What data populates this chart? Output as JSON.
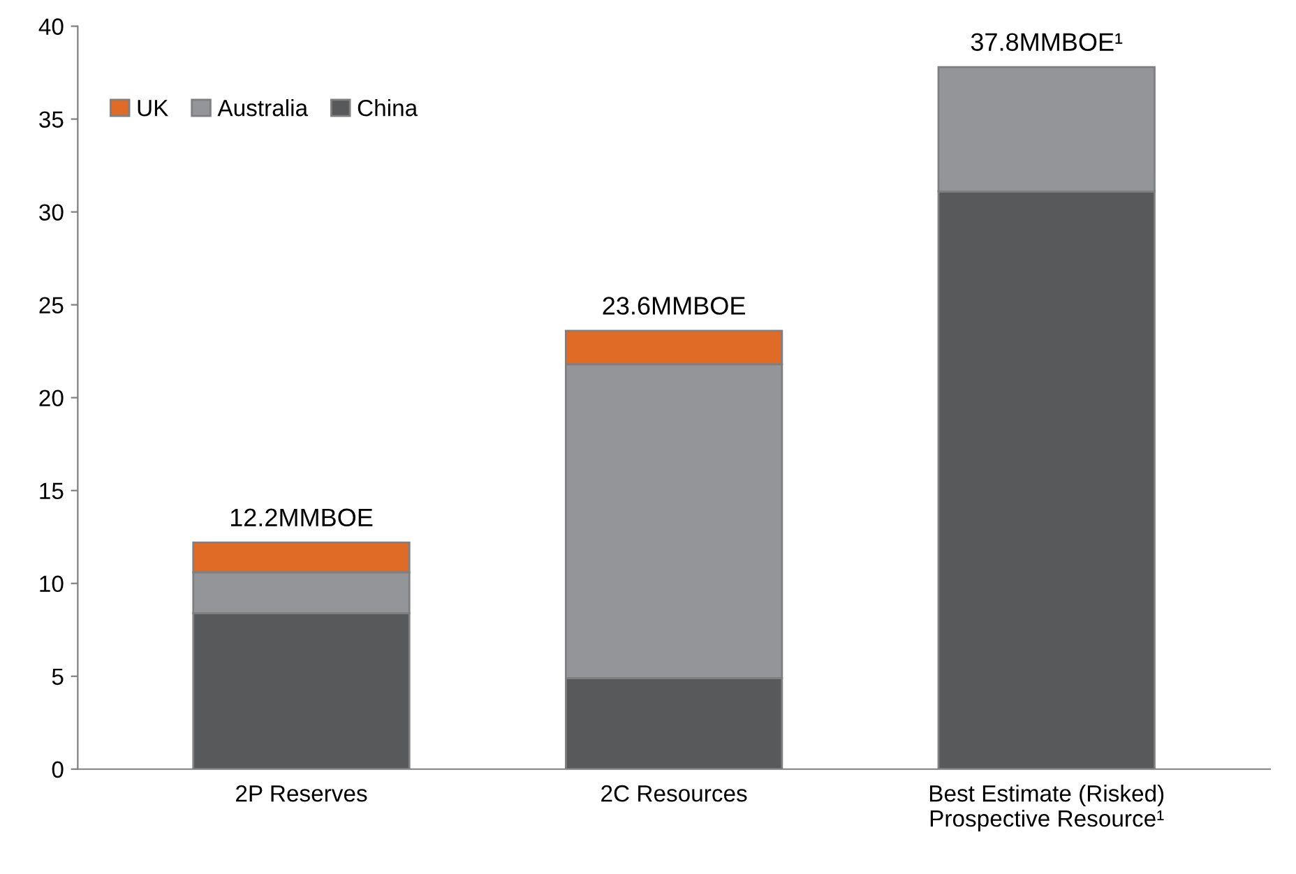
{
  "chart_data": {
    "type": "bar",
    "stacked": true,
    "categories": [
      "2P Reserves",
      "2C Resources",
      "Best Estimate (Risked)\nProspective Resource¹"
    ],
    "series": [
      {
        "name": "China",
        "color": "#58595b",
        "values": [
          8.4,
          4.9,
          31.1
        ]
      },
      {
        "name": "Australia",
        "color": "#939598",
        "values": [
          2.2,
          16.9,
          6.7
        ]
      },
      {
        "name": "UK",
        "color": "#e06b26",
        "values": [
          1.6,
          1.8,
          null
        ]
      }
    ],
    "totals": [
      "12.2MMBOE",
      "23.6MMBOE",
      "37.8MMBOE¹"
    ],
    "ylim": [
      0,
      40
    ],
    "yticks": [
      0,
      5,
      10,
      15,
      20,
      25,
      30,
      35,
      40
    ],
    "grid": false,
    "legend": "top left"
  }
}
